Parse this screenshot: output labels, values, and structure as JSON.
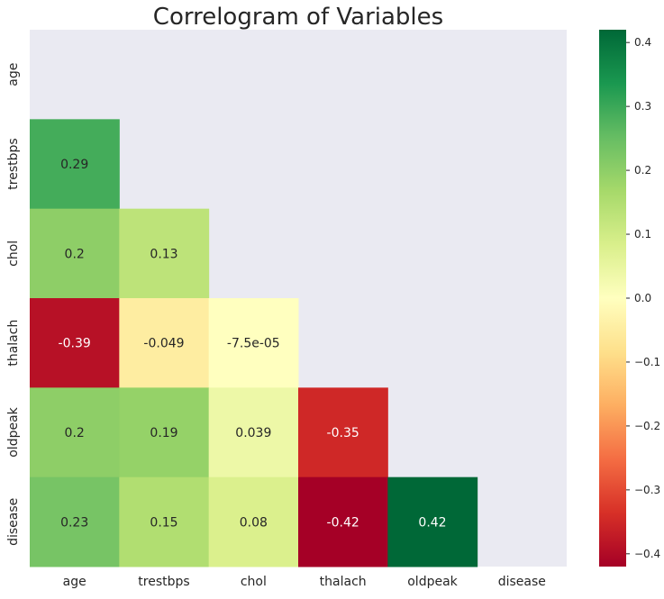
{
  "chart_data": {
    "type": "heatmap",
    "title": "Correlogram of Variables",
    "xlabel": "",
    "ylabel": "",
    "variables": [
      "age",
      "trestbps",
      "chol",
      "thalach",
      "oldpeak",
      "disease"
    ],
    "mask": "upper-triangle-and-diagonal",
    "matrix": [
      [
        null,
        null,
        null,
        null,
        null,
        null
      ],
      [
        0.29,
        null,
        null,
        null,
        null,
        null
      ],
      [
        0.2,
        0.13,
        null,
        null,
        null,
        null
      ],
      [
        -0.39,
        -0.049,
        -7.5e-05,
        null,
        null,
        null
      ],
      [
        0.2,
        0.19,
        0.039,
        -0.35,
        null,
        null
      ],
      [
        0.23,
        0.15,
        0.08,
        -0.42,
        0.42,
        null
      ]
    ],
    "annotations": [
      [
        null,
        null,
        null,
        null,
        null,
        null
      ],
      [
        "0.29",
        null,
        null,
        null,
        null,
        null
      ],
      [
        "0.2",
        "0.13",
        null,
        null,
        null,
        null
      ],
      [
        "-0.39",
        "-0.049",
        "-7.5e-05",
        null,
        null,
        null
      ],
      [
        "0.2",
        "0.19",
        "0.039",
        "-0.35",
        null,
        null
      ],
      [
        "0.23",
        "0.15",
        "0.08",
        "-0.42",
        "0.42",
        null
      ]
    ],
    "colormap": "RdYlGn",
    "vmin": -0.42,
    "vmax": 0.42,
    "colorbar_ticks": [
      0.4,
      0.3,
      0.2,
      0.1,
      0.0,
      -0.1,
      -0.2,
      -0.3,
      -0.4
    ],
    "colorbar_tick_labels": [
      "0.4",
      "0.3",
      "0.2",
      "0.1",
      "0.0",
      "−0.1",
      "−0.2",
      "−0.3",
      "−0.4"
    ],
    "background_color": "#eaeaf2",
    "grid": false,
    "legend": "colorbar-right"
  }
}
